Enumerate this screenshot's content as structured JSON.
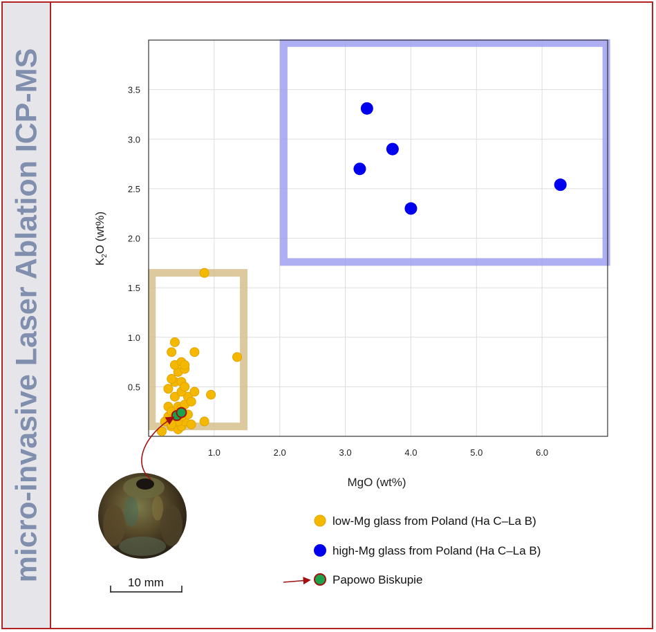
{
  "side_title": "micro-invasive Laser Ablation ICP-MS",
  "colors": {
    "frame": "#b22222",
    "side_text": "#7f8fad",
    "low_mg": "#f5b800",
    "high_mg": "#0000ee",
    "papowo": "#1aa34a",
    "low_mg_box": "#d6c08c",
    "high_mg_box": "#9a9af0",
    "arrow": "#a01010"
  },
  "chart_data": {
    "type": "scatter",
    "title": "",
    "xlabel": "MgO (wt%)",
    "ylabel_main": "K",
    "ylabel_sub": "2",
    "ylabel_rest": "O (wt%)",
    "xlim": [
      0,
      7.0
    ],
    "ylim": [
      0,
      4.0
    ],
    "grid": true,
    "xticks": [
      {
        "value": 1.0,
        "label": "1.0"
      },
      {
        "value": 2.0,
        "label": "2.0"
      },
      {
        "value": 3.0,
        "label": "3.0"
      },
      {
        "value": 4.0,
        "label": "4.0"
      },
      {
        "value": 5.0,
        "label": "5.0"
      },
      {
        "value": 6.0,
        "label": "6.0"
      }
    ],
    "yticks": [
      {
        "value": 0.5,
        "label": "0.5"
      },
      {
        "value": 1.0,
        "label": "1.0"
      },
      {
        "value": 1.5,
        "label": "1.5"
      },
      {
        "value": 2.0,
        "label": "2.0"
      },
      {
        "value": 2.5,
        "label": "2.5"
      },
      {
        "value": 3.0,
        "label": "3.0"
      },
      {
        "value": 3.5,
        "label": "3.5"
      }
    ],
    "series": [
      {
        "name": "low-Mg glass from Poland (Ha C–La B)",
        "color": "#f5b800",
        "points": [
          [
            0.2,
            0.05
          ],
          [
            0.25,
            0.15
          ],
          [
            0.3,
            0.2
          ],
          [
            0.35,
            0.1
          ],
          [
            0.4,
            0.2
          ],
          [
            0.45,
            0.07
          ],
          [
            0.5,
            0.1
          ],
          [
            0.55,
            0.15
          ],
          [
            0.6,
            0.22
          ],
          [
            0.65,
            0.12
          ],
          [
            0.3,
            0.3
          ],
          [
            0.35,
            0.25
          ],
          [
            0.45,
            0.3
          ],
          [
            0.5,
            0.28
          ],
          [
            0.55,
            0.32
          ],
          [
            0.6,
            0.4
          ],
          [
            0.65,
            0.35
          ],
          [
            0.7,
            0.45
          ],
          [
            0.4,
            0.4
          ],
          [
            0.5,
            0.45
          ],
          [
            0.3,
            0.48
          ],
          [
            0.4,
            0.55
          ],
          [
            0.5,
            0.55
          ],
          [
            0.55,
            0.5
          ],
          [
            0.35,
            0.58
          ],
          [
            0.45,
            0.65
          ],
          [
            0.55,
            0.68
          ],
          [
            0.4,
            0.72
          ],
          [
            0.5,
            0.75
          ],
          [
            0.55,
            0.72
          ],
          [
            0.35,
            0.85
          ],
          [
            0.7,
            0.85
          ],
          [
            0.4,
            0.95
          ],
          [
            0.85,
            0.15
          ],
          [
            0.95,
            0.42
          ],
          [
            0.4,
            0.2
          ],
          [
            0.45,
            0.15
          ],
          [
            0.5,
            0.2
          ],
          [
            0.35,
            0.12
          ],
          [
            0.85,
            1.65
          ],
          [
            1.35,
            0.8
          ]
        ]
      },
      {
        "name": "high-Mg glass from Poland (Ha C–La B)",
        "color": "#0000ee",
        "points": [
          [
            3.33,
            3.31
          ],
          [
            3.72,
            2.9
          ],
          [
            3.22,
            2.7
          ],
          [
            4.0,
            2.3
          ],
          [
            6.28,
            2.54
          ]
        ]
      },
      {
        "name": "Papowo Biskupie",
        "color": "#1aa34a",
        "points": [
          [
            0.43,
            0.21
          ],
          [
            0.5,
            0.24
          ]
        ]
      }
    ],
    "regions": [
      {
        "name": "low-Mg",
        "x0": 0.05,
        "x1": 1.45,
        "y0": 0.1,
        "y1": 1.65
      },
      {
        "name": "high-Mg",
        "x0": 2.06,
        "x1": 6.98,
        "y0": 1.76,
        "y1": 3.97
      }
    ]
  },
  "scale_bar_label": "10 mm"
}
